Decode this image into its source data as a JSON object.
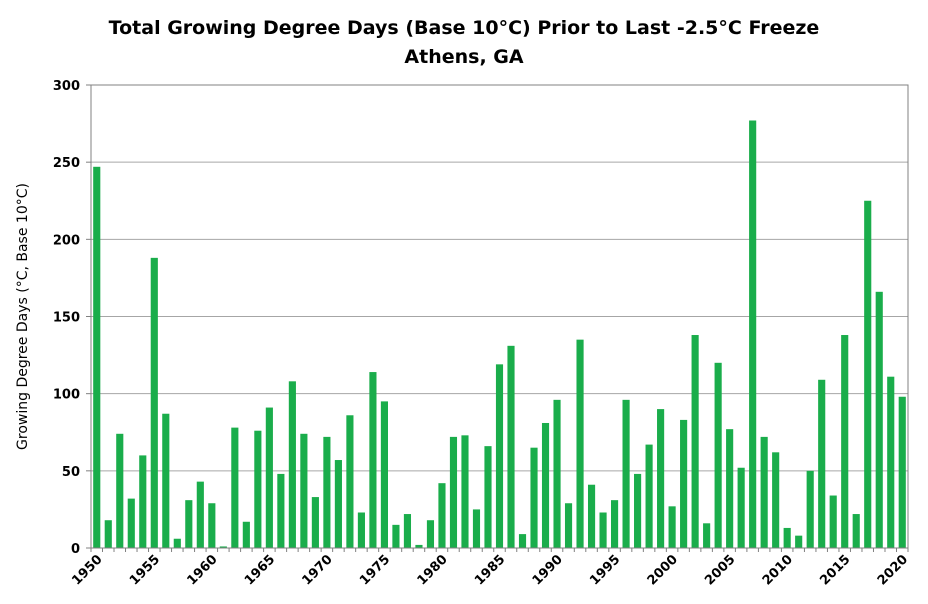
{
  "chart_data": {
    "type": "bar",
    "title": "Total Growing Degree Days (Base 10°C) Prior to Last -2.5°C Freeze",
    "subtitle": "Athens, GA",
    "xlabel": "",
    "ylabel": "Growing Degree Days (°C, Base 10°C)",
    "ylim": [
      0,
      300
    ],
    "yticks": [
      0,
      50,
      100,
      150,
      200,
      250,
      300
    ],
    "xtick_labels": [
      "1950",
      "1955",
      "1960",
      "1965",
      "1970",
      "1975",
      "1980",
      "1985",
      "1990",
      "1995",
      "2000",
      "2005",
      "2010",
      "2015",
      "2020"
    ],
    "grid": true,
    "bar_color": "#1aad4b",
    "categories": [
      1950,
      1951,
      1952,
      1953,
      1954,
      1955,
      1956,
      1957,
      1958,
      1959,
      1960,
      1961,
      1962,
      1963,
      1964,
      1965,
      1966,
      1967,
      1968,
      1969,
      1970,
      1971,
      1972,
      1973,
      1974,
      1975,
      1976,
      1977,
      1978,
      1979,
      1980,
      1981,
      1982,
      1983,
      1984,
      1985,
      1986,
      1987,
      1988,
      1989,
      1990,
      1991,
      1992,
      1993,
      1994,
      1995,
      1996,
      1997,
      1998,
      1999,
      2000,
      2001,
      2002,
      2003,
      2004,
      2005,
      2006,
      2007,
      2008,
      2009,
      2010,
      2011,
      2012,
      2013,
      2014,
      2015,
      2016,
      2017,
      2018,
      2019,
      2020
    ],
    "values": [
      247,
      18,
      74,
      32,
      60,
      188,
      87,
      6,
      31,
      43,
      29,
      1,
      78,
      17,
      76,
      91,
      48,
      108,
      74,
      33,
      72,
      57,
      86,
      23,
      114,
      95,
      15,
      22,
      2,
      18,
      42,
      72,
      73,
      25,
      66,
      119,
      131,
      9,
      65,
      81,
      96,
      29,
      135,
      41,
      23,
      31,
      96,
      48,
      67,
      90,
      27,
      83,
      138,
      16,
      120,
      77,
      52,
      277,
      72,
      62,
      13,
      8,
      50,
      109,
      34,
      138,
      22,
      225,
      166,
      111,
      98
    ]
  }
}
